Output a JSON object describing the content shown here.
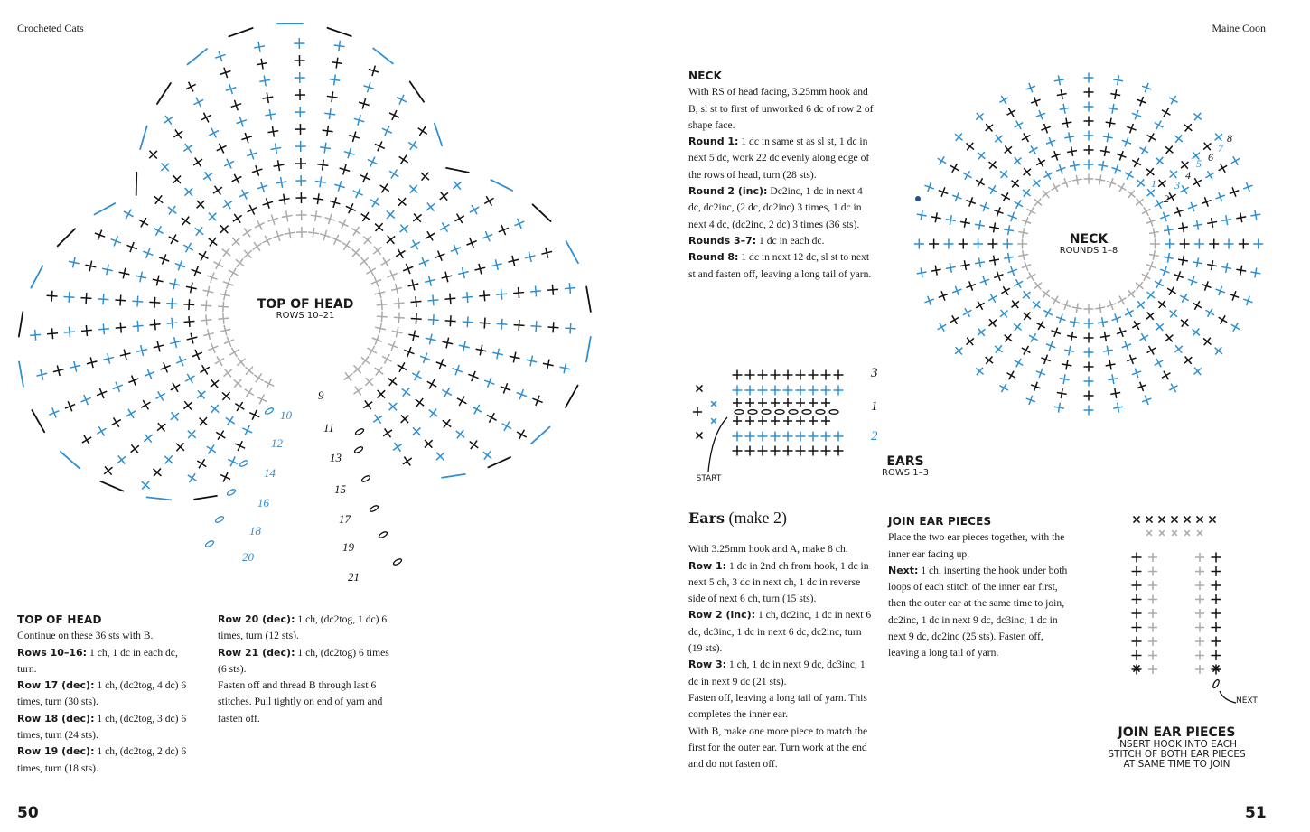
{
  "header": {
    "left": "Crocheted Cats",
    "right": "Maine Coon"
  },
  "folios": {
    "left": "50",
    "right": "51"
  },
  "colors": {
    "black_stitch": "#111111",
    "blue_stitch": "#2f8fd0",
    "grey_stitch": "#aaaaaa"
  },
  "diagrams": {
    "top_of_head": {
      "title": "TOP OF HEAD",
      "subtitle": "ROWS 10–21",
      "row_numbers": [
        "9",
        "10",
        "11",
        "12",
        "13",
        "14",
        "15",
        "16",
        "17",
        "18",
        "19",
        "20",
        "21"
      ]
    },
    "neck": {
      "title": "NECK",
      "subtitle": "ROUNDS 1–8",
      "round_numbers": [
        "1",
        "2",
        "3",
        "4",
        "5",
        "6",
        "7",
        "8"
      ]
    },
    "ears": {
      "title": "EARS",
      "subtitle": "ROWS 1–3",
      "start": "START",
      "row_numbers": [
        "3",
        "1",
        "2"
      ]
    },
    "join": {
      "title": "JOIN EAR PIECES",
      "lines": [
        "INSERT HOOK INTO EACH",
        "STITCH OF BOTH EAR PIECES",
        "AT SAME TIME TO JOIN"
      ],
      "next": "NEXT"
    }
  },
  "top_of_head": {
    "heading": "TOP OF HEAD",
    "col1": [
      {
        "b": "",
        "t": "Continue on these 36 sts with B."
      },
      {
        "b": "Rows 10–16:",
        "t": " 1 ch, 1 dc in each dc, turn."
      },
      {
        "b": "Row 17 (dec):",
        "t": " 1 ch, (dc2tog, 4 dc) 6 times, turn (30 sts)."
      },
      {
        "b": "Row 18 (dec):",
        "t": " 1 ch, (dc2tog, 3 dc) 6 times, turn (24 sts)."
      },
      {
        "b": "Row 19 (dec):",
        "t": " 1 ch, (dc2tog, 2 dc) 6 times, turn (18 sts)."
      }
    ],
    "col2": [
      {
        "b": "Row 20 (dec):",
        "t": " 1 ch, (dc2tog, 1 dc) 6 times, turn (12 sts)."
      },
      {
        "b": "Row 21 (dec):",
        "t": " 1 ch, (dc2tog) 6 times (6 sts)."
      },
      {
        "b": "",
        "t": "Fasten off and thread B through last 6 stitches. Pull tightly on end of yarn and fasten off."
      }
    ]
  },
  "neck": {
    "heading": "NECK",
    "paras": [
      {
        "b": "",
        "t": "With RS of head facing, 3.25mm hook and B, sl st to first of unworked 6 dc of row 2 of shape face."
      },
      {
        "b": "Round 1:",
        "t": " 1 dc in same st as sl st, 1 dc in next 5 dc, work 22 dc evenly along edge of the rows of head, turn (28 sts)."
      },
      {
        "b": "Round 2 (inc):",
        "t": " Dc2inc, 1 dc in next 4 dc, dc2inc, (2 dc, dc2inc) 3 times, 1 dc in next 4 dc, (dc2inc, 2 dc) 3 times (36 sts)."
      },
      {
        "b": "Rounds 3–7:",
        "t": " 1 dc in each dc."
      },
      {
        "b": "Round 8:",
        "t": " 1 dc in next 12 dc, sl st to next st and fasten off, leaving a long tail of yarn."
      }
    ]
  },
  "ears": {
    "heading": "Ears",
    "heading_suffix": " (make 2)",
    "paras": [
      {
        "b": "",
        "t": "With 3.25mm hook and A, make 8 ch."
      },
      {
        "b": "Row 1:",
        "t": " 1 dc in 2nd ch from hook, 1 dc in next 5 ch, 3 dc in next ch, 1 dc in reverse side of next 6 ch, turn (15 sts)."
      },
      {
        "b": "Row 2 (inc):",
        "t": " 1 ch, dc2inc, 1 dc in next 6 dc, dc3inc, 1 dc in next 6 dc, dc2inc, turn (19 sts)."
      },
      {
        "b": "Row 3:",
        "t": " 1 ch, 1 dc in next 9 dc, dc3inc, 1 dc in next 9 dc (21 sts)."
      },
      {
        "b": "",
        "t": "Fasten off, leaving a long tail of yarn. This completes the inner ear."
      },
      {
        "b": "",
        "t": "With B, make one more piece to match the first for the outer ear. Turn work at the end and do not fasten off."
      }
    ]
  },
  "join": {
    "heading": "JOIN EAR PIECES",
    "paras": [
      {
        "b": "",
        "t": "Place the two ear pieces together, with the inner ear facing up."
      },
      {
        "b": "Next:",
        "t": " 1 ch, inserting the hook under both loops of each stitch of the inner ear first, then the outer ear at the same time to join, dc2inc, 1 dc in next 9 dc, dc3inc, 1 dc in next 9 dc, dc2inc (25 sts). Fasten off, leaving a long tail of yarn."
      }
    ]
  }
}
